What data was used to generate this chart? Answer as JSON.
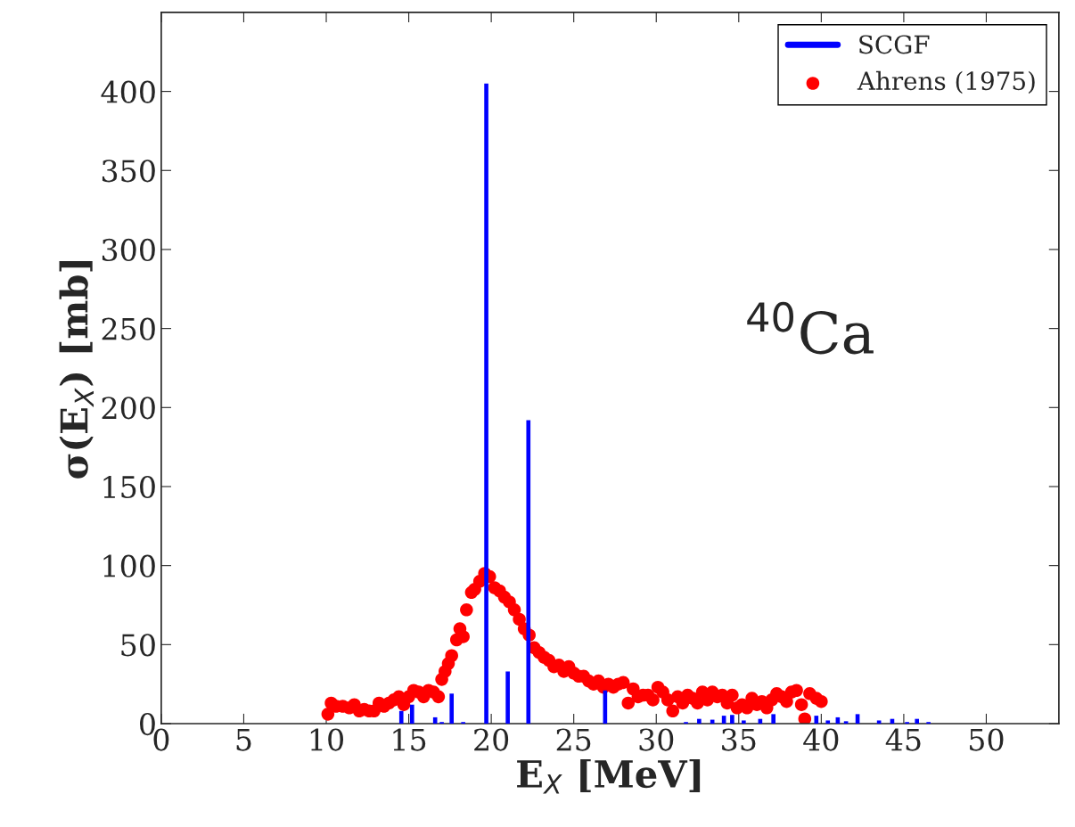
{
  "chart_data": {
    "type": "bar",
    "xlabel": "E$_{X}$ [MeV]",
    "ylabel": "σ(E$_{X}$) [mb]",
    "annotations": [
      "$^{40}$Ca"
    ],
    "xlim": [
      0,
      54.4
    ],
    "ylim": [
      0,
      450
    ],
    "xticks": [
      0,
      5,
      10,
      15,
      20,
      25,
      30,
      35,
      40,
      45,
      50
    ],
    "yticks": [
      0,
      50,
      100,
      150,
      200,
      250,
      300,
      350,
      400
    ],
    "grid": false,
    "legend": "top right",
    "series": [
      {
        "name": "SCGF",
        "color": "#0000ff",
        "x": [
          14.55,
          15.2,
          16.6,
          17.0,
          17.6,
          18.3,
          19.7,
          21.0,
          22.25,
          26.9,
          31.8,
          32.6,
          33.4,
          34.1,
          34.6,
          35.3,
          36.3,
          37.1,
          39.7,
          40.4,
          41.0,
          41.5,
          42.2,
          43.5,
          44.3,
          45.2,
          45.8,
          46.5
        ],
        "values": [
          8,
          12,
          4,
          1,
          19,
          1,
          405,
          33,
          192,
          21,
          1,
          3,
          2.5,
          5,
          5.5,
          2,
          3,
          6,
          5,
          2,
          4,
          1.5,
          6,
          2,
          3,
          1,
          3,
          1
        ]
      },
      {
        "name": "Ahrens (1975)",
        "type": "scatter",
        "color": "#ff0000",
        "marker": "circle",
        "x": [
          10.1,
          10.3,
          10.6,
          11,
          11.4,
          11.7,
          12,
          12.3,
          12.6,
          12.9,
          13.2,
          13.5,
          13.8,
          14.1,
          14.4,
          14.7,
          15,
          15.3,
          15.6,
          15.9,
          16.2,
          16.5,
          16.8,
          17,
          17.2,
          17.4,
          17.6,
          17.9,
          18.1,
          18.3,
          18.5,
          18.8,
          19,
          19.3,
          19.6,
          19.9,
          20.2,
          20.5,
          20.8,
          21.1,
          21.4,
          21.7,
          22,
          22.3,
          22.6,
          22.9,
          23.2,
          23.5,
          23.8,
          24.1,
          24.4,
          24.7,
          25,
          25.3,
          25.6,
          25.9,
          26.2,
          26.5,
          26.8,
          27.1,
          27.4,
          27.7,
          28,
          28.3,
          28.6,
          28.9,
          29.2,
          29.5,
          29.8,
          30.1,
          30.4,
          30.7,
          31,
          31.3,
          31.6,
          31.9,
          32.2,
          32.5,
          32.8,
          33.1,
          33.4,
          33.7,
          34,
          34.3,
          34.6,
          34.9,
          35.2,
          35.5,
          35.8,
          36.1,
          36.4,
          36.7,
          37,
          37.3,
          37.6,
          37.9,
          38.2,
          38.5,
          38.8,
          39,
          39.3,
          39.7,
          40
        ],
        "values": [
          6,
          13,
          11,
          11,
          10,
          12,
          8,
          9,
          8,
          8,
          13,
          11,
          13,
          15,
          17,
          12,
          17,
          21,
          20,
          17,
          21,
          20,
          17,
          28,
          33,
          38,
          43,
          53,
          60,
          55,
          72,
          83,
          85,
          90,
          95,
          93,
          86,
          84,
          80,
          77,
          72,
          66,
          60,
          56,
          48,
          45,
          42,
          40,
          36,
          37,
          33,
          36,
          32,
          30,
          30,
          27,
          25,
          27,
          23,
          25,
          23,
          25,
          26,
          13,
          22,
          17,
          18,
          18,
          15,
          23,
          20,
          15,
          8,
          17,
          13,
          18,
          16,
          13,
          20,
          15,
          20,
          17,
          18,
          13,
          18,
          10,
          12,
          10,
          16,
          12,
          14,
          10,
          15,
          19,
          17,
          14,
          20,
          21,
          12,
          3,
          19,
          16,
          14
        ]
      }
    ]
  }
}
